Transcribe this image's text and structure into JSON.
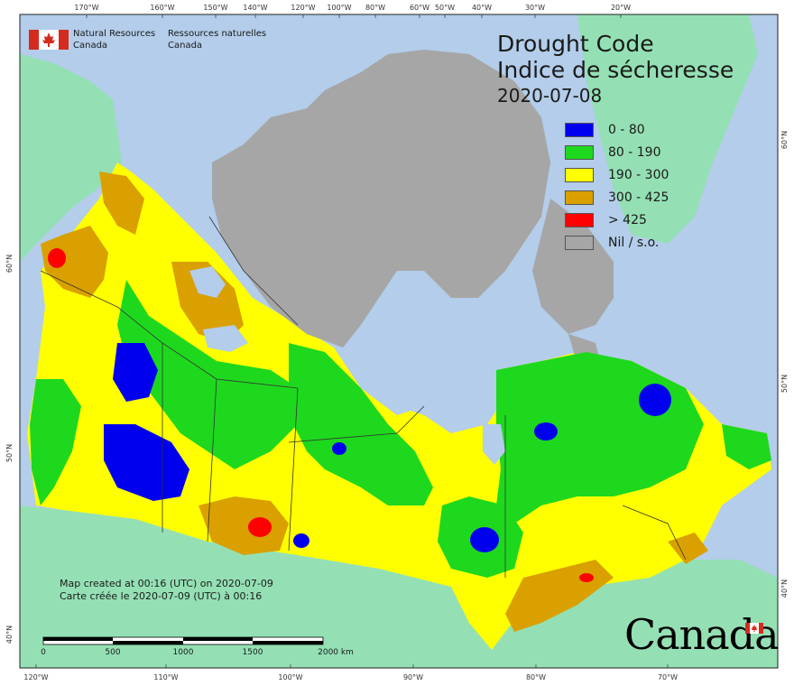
{
  "title": {
    "en": "Drought Code",
    "fr": "Indice de sécheresse",
    "date": "2020-07-08"
  },
  "agency": {
    "en_line1": "Natural Resources",
    "en_line2": "Canada",
    "fr_line1": "Ressources naturelles",
    "fr_line2": "Canada"
  },
  "legend": [
    {
      "label": "0 - 80",
      "color": "#0000ee"
    },
    {
      "label": "80 - 190",
      "color": "#1ed81e"
    },
    {
      "label": "190 - 300",
      "color": "#ffff00"
    },
    {
      "label": "300 - 425",
      "color": "#d9a000"
    },
    {
      "label": "> 425",
      "color": "#ff0000"
    },
    {
      "label": "Nil / s.o.",
      "color": "#a6a6a6"
    }
  ],
  "notes": {
    "en": "Map created at 00:16 (UTC) on 2020-07-09",
    "fr": "Carte créée le 2020-07-09 (UTC) à 00:16"
  },
  "scale_bar": {
    "labels": [
      "0",
      "500",
      "1000",
      "1500",
      "2000 km"
    ]
  },
  "graticule": {
    "top": [
      "170°W",
      "160°W",
      "150°W",
      "140°W",
      "120°W",
      "100°W",
      "80°W",
      "60°W",
      "50°W",
      "40°W",
      "30°W",
      "20°W"
    ],
    "bottom": [
      "120°W",
      "110°W",
      "100°W",
      "90°W",
      "80°W",
      "70°W"
    ],
    "left": [
      "60°N",
      "50°N",
      "40°N"
    ],
    "right": [
      "60°N",
      "50°N",
      "40°N"
    ]
  },
  "wordmark": "Canada",
  "colors": {
    "ocean": "#b3cdea",
    "land_outside": "#94e0b4",
    "nil": "#a6a6a6"
  }
}
